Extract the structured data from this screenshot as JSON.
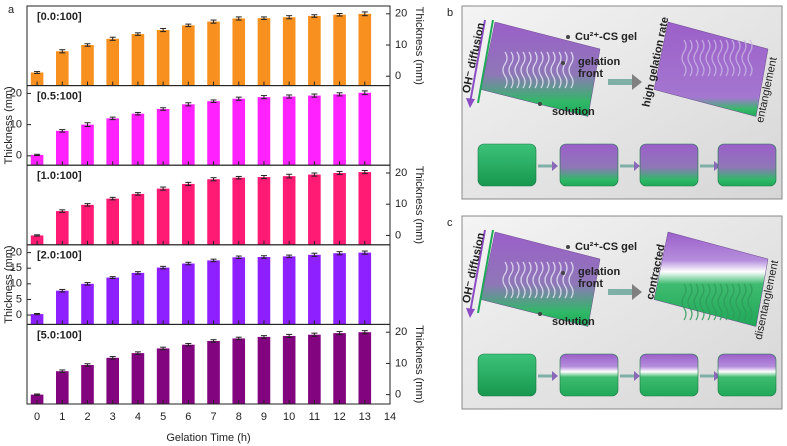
{
  "chart_data": [
    {
      "type": "bar",
      "figure_label": "a",
      "title": "[0.0:100]",
      "x": [
        0,
        1,
        2,
        3,
        4,
        5,
        6,
        7,
        8,
        9,
        10,
        11,
        12,
        13
      ],
      "values": [
        1.2,
        8,
        10,
        12,
        13.5,
        14.8,
        16.3,
        17.5,
        18.5,
        18.6,
        18.9,
        19.3,
        19.7,
        20
      ],
      "errors": [
        0.3,
        0.5,
        0.4,
        0.5,
        0.4,
        0.5,
        0.4,
        0.5,
        0.5,
        0.4,
        0.5,
        0.4,
        0.4,
        0.6
      ],
      "color": "#f7901e",
      "xlim": [
        -0.4,
        14
      ],
      "ylim": [
        -3,
        22.5
      ],
      "yticks": [
        0,
        10,
        20
      ],
      "ylabel": "Thickness (mm)",
      "y_axis_side": "right"
    },
    {
      "type": "bar",
      "title": "[0.5:100]",
      "x": [
        0,
        1,
        2,
        3,
        4,
        5,
        6,
        7,
        8,
        9,
        10,
        11,
        12,
        13
      ],
      "values": [
        0.3,
        8,
        10,
        12,
        13.5,
        15,
        16.5,
        17.5,
        18.3,
        18.8,
        19,
        19.3,
        19.7,
        20.2
      ],
      "errors": [
        0.2,
        0.4,
        0.6,
        0.4,
        0.4,
        0.4,
        0.5,
        0.4,
        0.5,
        0.5,
        0.5,
        0.5,
        0.5,
        0.6
      ],
      "color": "#ff22ff",
      "xlim": [
        -0.4,
        14
      ],
      "ylim": [
        -3,
        22.5
      ],
      "yticks": [
        0,
        10,
        20
      ],
      "ylabel": "Thickness (mm)",
      "y_axis_side": "left"
    },
    {
      "type": "bar",
      "title": "[1.0:100]",
      "x": [
        0,
        1,
        2,
        3,
        4,
        5,
        6,
        7,
        8,
        9,
        10,
        11,
        12,
        13
      ],
      "values": [
        0,
        7.8,
        9.8,
        11.8,
        13.3,
        15,
        16.5,
        18,
        18.5,
        18.7,
        19,
        19.5,
        20,
        20.3
      ],
      "errors": [
        0.2,
        0.4,
        0.4,
        0.4,
        0.4,
        0.5,
        0.5,
        0.5,
        0.4,
        0.5,
        0.6,
        0.5,
        0.5,
        0.5
      ],
      "color": "#ff1a73",
      "xlim": [
        -0.4,
        14
      ],
      "ylim": [
        -3,
        22.5
      ],
      "yticks": [
        0,
        10,
        20
      ],
      "ylabel": "Thickness (mm)",
      "y_axis_side": "right"
    },
    {
      "type": "bar",
      "title": "[2.0:100]",
      "x": [
        0,
        1,
        2,
        3,
        4,
        5,
        6,
        7,
        8,
        9,
        10,
        11,
        12,
        13
      ],
      "values": [
        0.3,
        7.8,
        10,
        12,
        13.5,
        15.2,
        16.5,
        17.5,
        18.5,
        18.6,
        18.8,
        19.3,
        19.8,
        20
      ],
      "errors": [
        0.2,
        0.4,
        0.4,
        0.3,
        0.4,
        0.4,
        0.4,
        0.4,
        0.4,
        0.4,
        0.4,
        0.5,
        0.5,
        0.5
      ],
      "color": "#8e1fff",
      "xlim": [
        -0.4,
        14
      ],
      "ylim": [
        -3,
        22.5
      ],
      "yticks": [
        0,
        5,
        10,
        15,
        20
      ],
      "ylabel": "Thickness (mm)",
      "y_axis_side": "left"
    },
    {
      "type": "bar",
      "title": "[5.0:100]",
      "x": [
        0,
        1,
        2,
        3,
        4,
        5,
        6,
        7,
        8,
        9,
        10,
        11,
        12,
        13
      ],
      "values": [
        0,
        7.5,
        9.5,
        11.8,
        13.3,
        14.8,
        16,
        17.2,
        18,
        18.5,
        18.8,
        19.2,
        19.7,
        20
      ],
      "errors": [
        0.2,
        0.4,
        0.4,
        0.4,
        0.4,
        0.4,
        0.4,
        0.4,
        0.4,
        0.4,
        0.5,
        0.5,
        0.5,
        0.5
      ],
      "color": "#82047e",
      "xlim": [
        -0.4,
        14
      ],
      "ylim": [
        -3,
        22.5
      ],
      "yticks": [
        0,
        10,
        20
      ],
      "ylabel": "Thickness (mm)",
      "y_axis_side": "right",
      "xticks": [
        0,
        1,
        2,
        3,
        4,
        5,
        6,
        7,
        8,
        9,
        10,
        11,
        12,
        13,
        14
      ],
      "xlabel": "Gelation Time (h)"
    }
  ],
  "diagrams": {
    "b": {
      "label": "b",
      "diffusion": "OH⁻ diffusion",
      "gel": "Cu²⁺-CS gel",
      "front": [
        "gelation",
        "front"
      ],
      "solution": "solution",
      "result": "high gelation rate",
      "state": "entanglement"
    },
    "c": {
      "label": "c",
      "diffusion": "OH⁻ diffusion",
      "gel": "Cu²⁺-CS gel",
      "front": [
        "gelation",
        "front"
      ],
      "solution": "solution",
      "result": "contracted",
      "state": "disentanglement"
    }
  }
}
